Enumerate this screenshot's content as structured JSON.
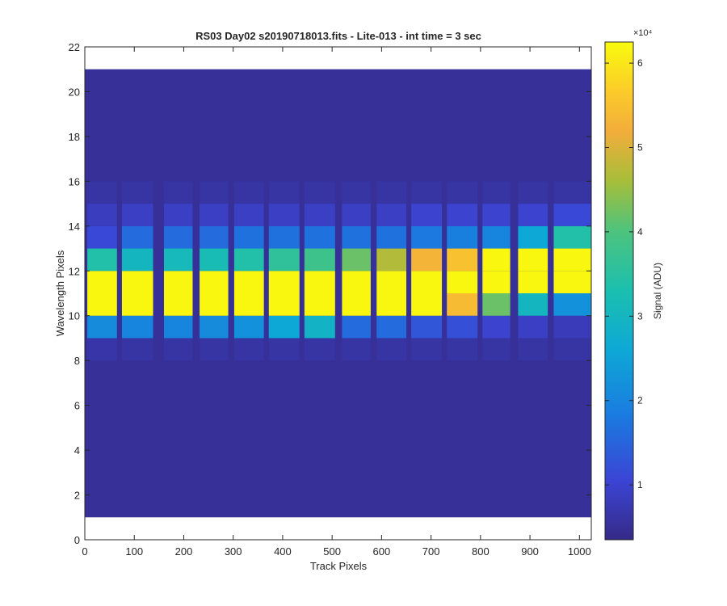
{
  "chart_data": {
    "type": "heatmap",
    "title": "RS03 Day02  s20190718013.fits - Lite-013 - int time = 3 sec",
    "xlabel": "Track Pixels",
    "ylabel": "Wavelength Pixels",
    "xlim": [
      0,
      1024
    ],
    "ylim": [
      0,
      22
    ],
    "xticks": [
      "0",
      "100",
      "200",
      "300",
      "400",
      "500",
      "600",
      "700",
      "800",
      "900",
      "1000"
    ],
    "yticks": [
      "0",
      "2",
      "4",
      "6",
      "8",
      "10",
      "12",
      "14",
      "16",
      "18",
      "20",
      "22"
    ],
    "colorbar": {
      "label": "Signal (ADU)",
      "exponent_label": "×10⁴",
      "ticks": [
        "1",
        "2",
        "3",
        "4",
        "5",
        "6"
      ],
      "range": [
        0.35,
        6.25
      ],
      "colormap": "parula"
    },
    "image_extent": {
      "x": [
        0,
        1024
      ],
      "y": [
        1,
        21
      ]
    },
    "background_value": 0.5,
    "fibers": [
      {
        "x": [
          5,
          65
        ],
        "rows": {
          "8": 0.65,
          "9": 2.1,
          "10": 6.2,
          "11": 6.2,
          "12": 3.4,
          "13": 1.1,
          "14": 0.85,
          "15": 0.6
        }
      },
      {
        "x": [
          75,
          138
        ],
        "rows": {
          "8": 0.6,
          "9": 2.0,
          "10": 6.2,
          "11": 6.2,
          "12": 3.0,
          "13": 1.6,
          "14": 0.9,
          "15": 0.6
        }
      },
      {
        "x": [
          160,
          218
        ],
        "rows": {
          "8": 0.6,
          "9": 2.0,
          "10": 6.2,
          "11": 6.2,
          "12": 3.1,
          "13": 1.6,
          "14": 0.9,
          "15": 0.6
        }
      },
      {
        "x": [
          232,
          290
        ],
        "rows": {
          "8": 0.6,
          "9": 2.1,
          "10": 6.2,
          "11": 6.2,
          "12": 3.2,
          "13": 1.6,
          "14": 0.9,
          "15": 0.6
        }
      },
      {
        "x": [
          302,
          362
        ],
        "rows": {
          "8": 0.6,
          "9": 2.2,
          "10": 6.2,
          "11": 6.2,
          "12": 3.4,
          "13": 1.7,
          "14": 0.9,
          "15": 0.6
        }
      },
      {
        "x": [
          372,
          434
        ],
        "rows": {
          "8": 0.6,
          "9": 2.6,
          "10": 6.2,
          "11": 6.2,
          "12": 3.6,
          "13": 1.7,
          "14": 0.9,
          "15": 0.6
        }
      },
      {
        "x": [
          444,
          506
        ],
        "rows": {
          "8": 0.6,
          "9": 2.9,
          "10": 6.2,
          "11": 6.2,
          "12": 3.8,
          "13": 1.7,
          "14": 0.9,
          "15": 0.6
        }
      },
      {
        "x": [
          520,
          578
        ],
        "rows": {
          "8": 0.6,
          "9": 1.6,
          "10": 6.2,
          "11": 6.2,
          "12": 4.2,
          "13": 1.7,
          "14": 0.9,
          "15": 0.6
        }
      },
      {
        "x": [
          590,
          650
        ],
        "rows": {
          "8": 0.6,
          "9": 1.6,
          "10": 6.2,
          "11": 6.2,
          "12": 4.7,
          "13": 1.7,
          "14": 0.9,
          "15": 0.6
        }
      },
      {
        "x": [
          660,
          722
        ],
        "rows": {
          "8": 0.6,
          "9": 1.3,
          "10": 6.2,
          "11": 6.2,
          "12": 5.3,
          "13": 1.8,
          "14": 1.0,
          "15": 0.6
        }
      },
      {
        "x": [
          732,
          794
        ],
        "rows": {
          "8": 0.6,
          "9": 1.2,
          "10": 5.4,
          "11": 6.2,
          "12": 5.5,
          "13": 1.9,
          "14": 1.0,
          "15": 0.6
        }
      },
      {
        "x": [
          804,
          860
        ],
        "rows": {
          "8": 0.6,
          "9": 1.0,
          "10": 4.2,
          "11": 6.2,
          "12": 6.2,
          "13": 2.0,
          "14": 1.0,
          "15": 0.6
        }
      },
      {
        "x": [
          876,
          936
        ],
        "rows": {
          "8": 0.6,
          "9": 0.9,
          "10": 3.0,
          "11": 6.2,
          "12": 6.2,
          "13": 2.6,
          "14": 1.0,
          "15": 0.6
        }
      },
      {
        "x": [
          948,
          1024
        ],
        "rows": {
          "8": 0.6,
          "9": 0.8,
          "10": 2.2,
          "11": 6.2,
          "12": 6.2,
          "13": 3.4,
          "14": 1.1,
          "15": 0.6
        }
      }
    ]
  }
}
